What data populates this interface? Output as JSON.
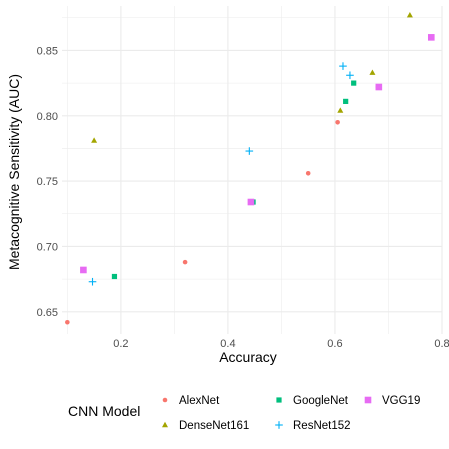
{
  "chart_data": {
    "type": "scatter",
    "xlabel": "Accuracy",
    "ylabel": "Metacognitive Sensitivity (AUC)",
    "xlim": [
      0.09,
      0.8
    ],
    "ylim": [
      0.633,
      0.884
    ],
    "x_ticks": [
      0.2,
      0.4,
      0.6,
      0.8
    ],
    "x_tick_labels": [
      "0.2",
      "0.4",
      "0.6",
      "0.8"
    ],
    "y_ticks": [
      0.65,
      0.7,
      0.75,
      0.8,
      0.85
    ],
    "y_tick_labels": [
      "0.65",
      "0.70",
      "0.75",
      "0.80",
      "0.85"
    ],
    "grid": true,
    "legend": {
      "title": "CNN Model",
      "position": "bottom"
    },
    "series": [
      {
        "name": "AlexNet",
        "shape": "circle",
        "color": "#F8766D",
        "points": [
          [
            0.1,
            0.642
          ],
          [
            0.32,
            0.688
          ],
          [
            0.55,
            0.756
          ],
          [
            0.605,
            0.795
          ],
          [
            0.68,
            0.822
          ]
        ]
      },
      {
        "name": "DenseNet161",
        "shape": "triangle",
        "color": "#A3A500",
        "points": [
          [
            0.15,
            0.781
          ],
          [
            0.61,
            0.804
          ],
          [
            0.67,
            0.833
          ],
          [
            0.74,
            0.877
          ]
        ]
      },
      {
        "name": "GoogleNet",
        "shape": "square",
        "color": "#00BF7D",
        "points": [
          [
            0.188,
            0.677
          ],
          [
            0.447,
            0.734
          ],
          [
            0.62,
            0.811
          ],
          [
            0.635,
            0.825
          ],
          [
            0.78,
            0.86
          ]
        ]
      },
      {
        "name": "ResNet152",
        "shape": "plus",
        "color": "#00B0F6",
        "points": [
          [
            0.147,
            0.673
          ],
          [
            0.44,
            0.773
          ],
          [
            0.615,
            0.838
          ],
          [
            0.628,
            0.831
          ]
        ]
      },
      {
        "name": "VGG19",
        "shape": "boxed-square",
        "color": "#E76BF3",
        "points": [
          [
            0.13,
            0.682
          ],
          [
            0.443,
            0.734
          ],
          [
            0.682,
            0.822
          ],
          [
            0.78,
            0.86
          ]
        ]
      }
    ]
  }
}
